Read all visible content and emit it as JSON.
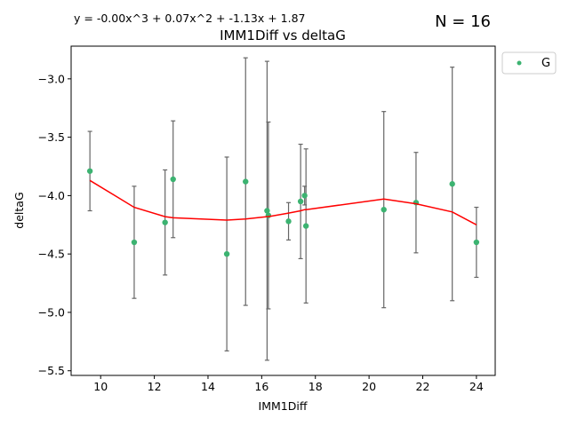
{
  "chart_data": {
    "type": "scatter",
    "title": "IMM1Diff vs deltaG",
    "equation": "y = -0.00x^3 + 0.07x^2 + -1.13x + 1.87",
    "count_label": "N = 16",
    "xlabel": "IMM1Diff",
    "ylabel": "deltaG",
    "xlim": [
      8.9,
      24.7
    ],
    "ylim": [
      -5.54,
      -2.72
    ],
    "xticks": [
      10,
      12,
      14,
      16,
      18,
      20,
      22,
      24
    ],
    "yticks": [
      -5.5,
      -5.0,
      -4.5,
      -4.0,
      -3.5,
      -3.0
    ],
    "ytick_labels": [
      "−5.5",
      "−5.0",
      "−4.5",
      "−4.0",
      "−3.5",
      "−3.0"
    ],
    "grid": false,
    "legend": {
      "position": "outside-top-right",
      "entries": [
        "G"
      ]
    },
    "colors": {
      "points": "#3cb371",
      "fit": "#ff0000",
      "errorbars": "#666666"
    },
    "series": [
      {
        "name": "G",
        "points": [
          {
            "x": 9.6,
            "y": -3.79,
            "err": 0.34
          },
          {
            "x": 11.25,
            "y": -4.4,
            "err": 0.48
          },
          {
            "x": 12.4,
            "y": -4.23,
            "err": 0.45
          },
          {
            "x": 12.7,
            "y": -3.86,
            "err": 0.5
          },
          {
            "x": 14.7,
            "y": -4.5,
            "err": 0.83
          },
          {
            "x": 15.4,
            "y": -3.88,
            "err": 1.06
          },
          {
            "x": 16.2,
            "y": -4.13,
            "err": 1.28
          },
          {
            "x": 16.25,
            "y": -4.17,
            "err": 0.8
          },
          {
            "x": 17.0,
            "y": -4.22,
            "err": 0.16
          },
          {
            "x": 17.45,
            "y": -4.05,
            "err": 0.49
          },
          {
            "x": 17.6,
            "y": -4.0,
            "err": 0.08
          },
          {
            "x": 17.65,
            "y": -4.26,
            "err": 0.66
          },
          {
            "x": 20.55,
            "y": -4.12,
            "err": 0.84
          },
          {
            "x": 21.75,
            "y": -4.06,
            "err": 0.43
          },
          {
            "x": 23.1,
            "y": -3.9,
            "err": 1.0
          },
          {
            "x": 24.0,
            "y": -4.4,
            "err": 0.3
          }
        ]
      }
    ],
    "fit_line": {
      "x": [
        9.6,
        11.25,
        12.4,
        12.7,
        14.7,
        15.4,
        16.2,
        16.25,
        17.0,
        17.45,
        17.6,
        17.65,
        20.55,
        21.75,
        23.1,
        24.0
      ],
      "y": [
        -3.87,
        -4.1,
        -4.18,
        -4.19,
        -4.21,
        -4.2,
        -4.18,
        -4.18,
        -4.15,
        -4.13,
        -4.12,
        -4.12,
        -4.03,
        -4.07,
        -4.14,
        -4.25
      ]
    }
  }
}
